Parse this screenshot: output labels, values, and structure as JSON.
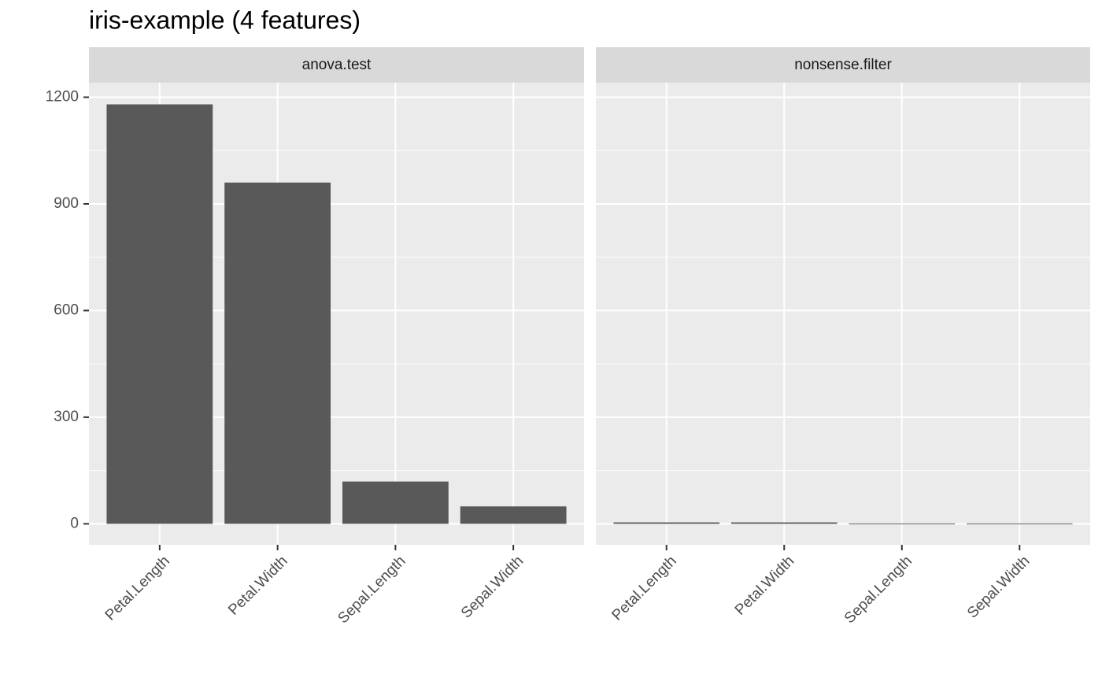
{
  "chart_data": {
    "type": "bar",
    "title": "iris-example (4 features)",
    "facets": [
      {
        "title": "anova.test",
        "categories": [
          "Petal.Length",
          "Petal.Width",
          "Sepal.Length",
          "Sepal.Width"
        ],
        "values": [
          1180,
          960,
          119,
          49
        ]
      },
      {
        "title": "nonsense.filter",
        "categories": [
          "Petal.Length",
          "Petal.Width",
          "Sepal.Length",
          "Sepal.Width"
        ],
        "values": [
          4,
          4,
          1,
          1
        ]
      }
    ],
    "color": "#595959",
    "ylim": [
      -59,
      1241
    ],
    "yticks": [
      0,
      300,
      600,
      900,
      1200
    ],
    "grid": true
  }
}
